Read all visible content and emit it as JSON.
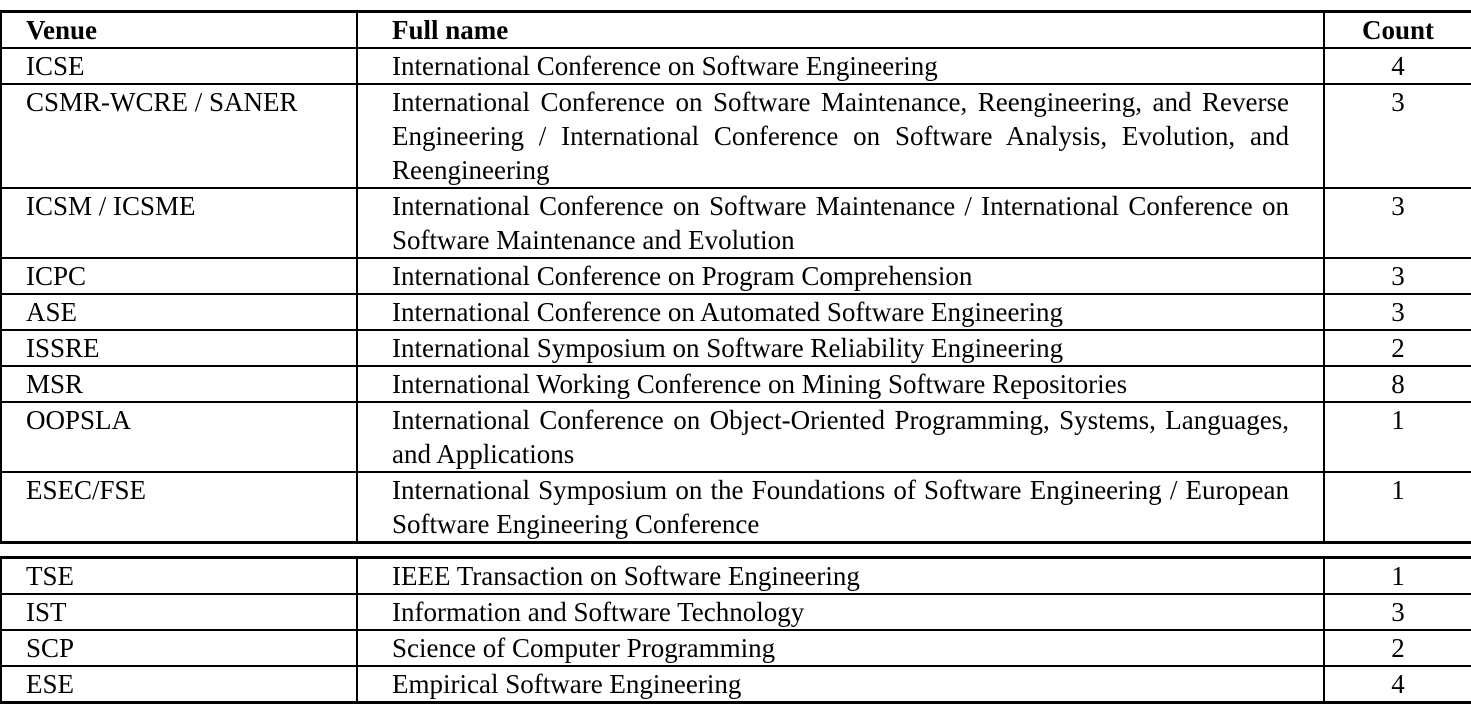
{
  "table": {
    "headers": {
      "venue": "Venue",
      "full_name": "Full name",
      "count": "Count"
    },
    "conferences": [
      {
        "venue": "ICSE",
        "full_name": "International Conference on Software Engineering",
        "count": "4"
      },
      {
        "venue": "CSMR-WCRE / SANER",
        "full_name": "International Conference on Software Maintenance, Reengineering, and Reverse Engineering / International Conference on Software Analysis, Evo­lution, and Reengineering",
        "count": "3"
      },
      {
        "venue": "ICSM / ICSME",
        "full_name": "International Conference on Software Maintenance / International Confer­ence on Software Maintenance and Evolution",
        "count": "3"
      },
      {
        "venue": "ICPC",
        "full_name": "International Conference on Program Comprehension",
        "count": "3"
      },
      {
        "venue": "ASE",
        "full_name": "International Conference on Automated Software Engineering",
        "count": "3"
      },
      {
        "venue": "ISSRE",
        "full_name": "International Symposium on Software Reliability Engineering",
        "count": "2"
      },
      {
        "venue": "MSR",
        "full_name": "International Working Conference on Mining Software Repositories",
        "count": "8"
      },
      {
        "venue": "OOPSLA",
        "full_name": "International Conference on Object-Oriented Programming, Systems, Lan­guages, and Applications",
        "count": "1"
      },
      {
        "venue": "ESEC/FSE",
        "full_name": "International Symposium on the Foundations of Software Engineering / European Software Engineering Conference",
        "count": "1"
      }
    ],
    "journals": [
      {
        "venue": "TSE",
        "full_name": "IEEE Transaction on Software Engineering",
        "count": "1"
      },
      {
        "venue": "IST",
        "full_name": "Information and Software Technology",
        "count": "3"
      },
      {
        "venue": "SCP",
        "full_name": "Science of Computer Programming",
        "count": "2"
      },
      {
        "venue": "ESE",
        "full_name": "Empirical Software Engineering",
        "count": "4"
      }
    ]
  }
}
